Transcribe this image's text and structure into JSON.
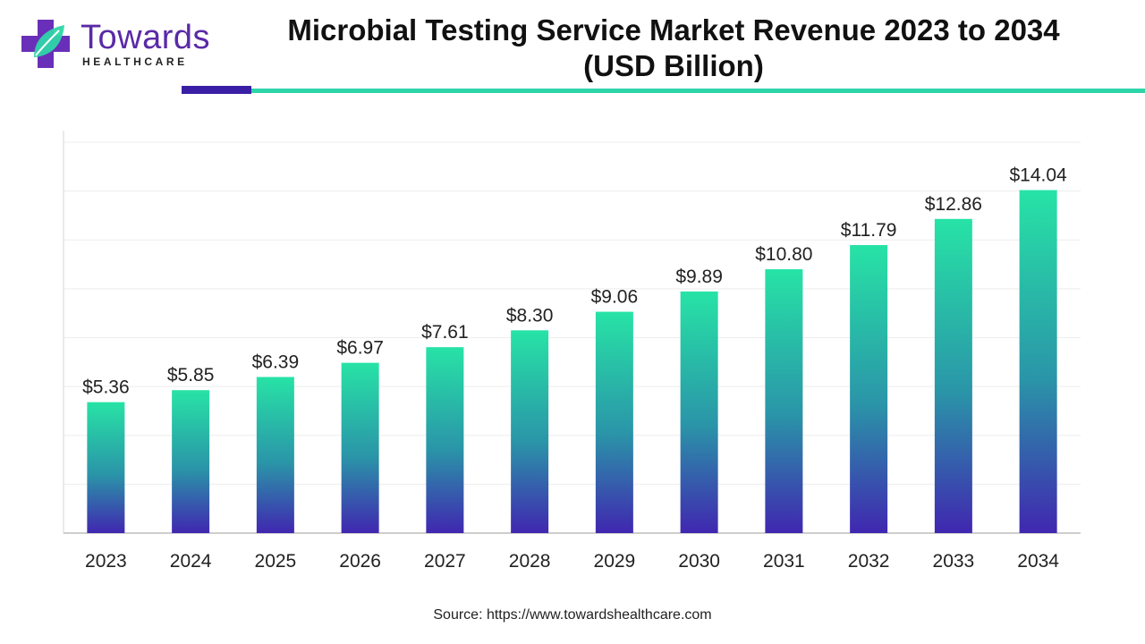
{
  "logo": {
    "word": "Towards",
    "sub": "HEALTHCARE"
  },
  "title": {
    "line1": "Microbial Testing Service Market Revenue 2023 to 2034",
    "line2": "(USD Billion)"
  },
  "source": "Source: https://www.towardshealthcare.com",
  "colors": {
    "bar_top": "#27e3a6",
    "bar_bottom": "#4027b0",
    "rule_purple": "#3a1fa6",
    "rule_teal": "#2ed5a8",
    "logo_purple": "#5a2aa6",
    "logo_teal": "#2ed5a8"
  },
  "chart_data": {
    "type": "bar",
    "title": "Microbial Testing Service Market Revenue 2023 to 2034 (USD Billion)",
    "categories": [
      "2023",
      "2024",
      "2025",
      "2026",
      "2027",
      "2028",
      "2029",
      "2030",
      "2031",
      "2032",
      "2033",
      "2034"
    ],
    "values": [
      5.36,
      5.85,
      6.39,
      6.97,
      7.61,
      8.3,
      9.06,
      9.89,
      10.8,
      11.79,
      12.86,
      14.04
    ],
    "value_labels": [
      "$5.36",
      "$5.85",
      "$6.39",
      "$6.97",
      "$7.61",
      "$8.30",
      "$9.06",
      "$9.89",
      "$10.80",
      "$11.79",
      "$12.86",
      "$14.04"
    ],
    "xlabel": "",
    "ylabel": "",
    "ylim": [
      0,
      16
    ],
    "grid": true,
    "legend": "none"
  }
}
